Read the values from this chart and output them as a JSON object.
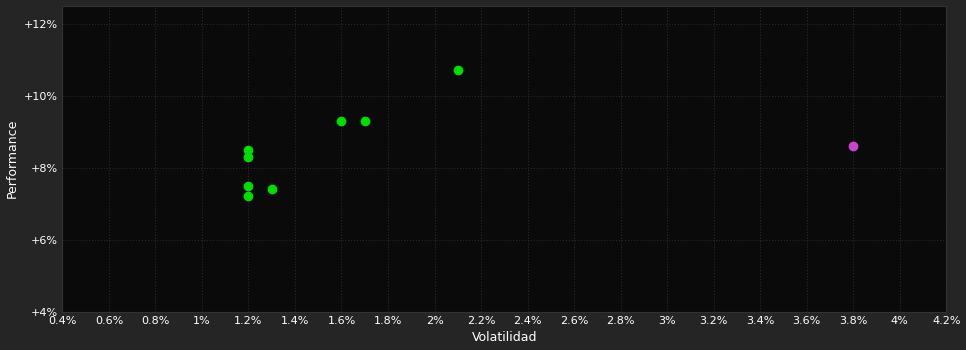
{
  "background_color": "#252525",
  "plot_bg_color": "#0a0a0a",
  "grid_color": "#2a2a2a",
  "text_color": "#ffffff",
  "xlabel": "Volatilidad",
  "ylabel": "Performance",
  "xlim": [
    0.004,
    0.042
  ],
  "ylim": [
    0.04,
    0.125
  ],
  "xtick_vals": [
    0.004,
    0.006,
    0.008,
    0.01,
    0.012,
    0.014,
    0.016,
    0.018,
    0.02,
    0.022,
    0.024,
    0.026,
    0.028,
    0.03,
    0.032,
    0.034,
    0.036,
    0.038,
    0.04,
    0.042
  ],
  "xtick_labels": [
    "0.4%",
    "0.6%",
    "0.8%",
    "1%",
    "1.2%",
    "1.4%",
    "1.6%",
    "1.8%",
    "2%",
    "2.2%",
    "2.4%",
    "2.6%",
    "2.8%",
    "3%",
    "3.2%",
    "3.4%",
    "3.6%",
    "3.8%",
    "4%",
    "4.2%"
  ],
  "ytick_vals": [
    0.04,
    0.06,
    0.08,
    0.1,
    0.12
  ],
  "ytick_labels": [
    "+4%",
    "+6%",
    "+8%",
    "+10%",
    "+12%"
  ],
  "green_x": [
    0.012,
    0.012,
    0.012,
    0.013,
    0.012,
    0.016,
    0.017,
    0.021
  ],
  "green_y": [
    0.085,
    0.083,
    0.075,
    0.074,
    0.072,
    0.093,
    0.093,
    0.107
  ],
  "magenta_x": [
    0.038
  ],
  "magenta_y": [
    0.086
  ],
  "green_color": "#00dd00",
  "magenta_color": "#cc44cc",
  "marker_size": 36,
  "font_size_tick": 8,
  "font_size_label": 9
}
